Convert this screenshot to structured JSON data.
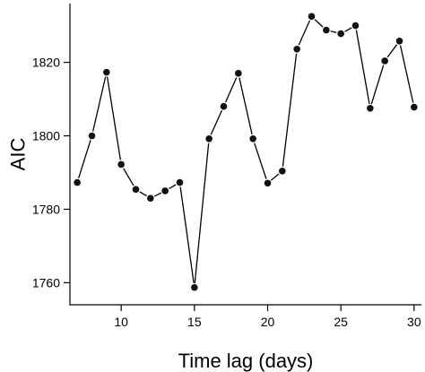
{
  "chart_data": {
    "type": "line",
    "xlabel": "Time lag (days)",
    "ylabel": "AIC",
    "xlim": [
      6.5,
      30.5
    ],
    "ylim": [
      1754,
      1836
    ],
    "xticks": [
      10,
      15,
      20,
      25,
      30
    ],
    "yticks": [
      1760,
      1780,
      1800,
      1820
    ],
    "grid": false,
    "series": [
      {
        "x": [
          7,
          8,
          9,
          10,
          11,
          12,
          13,
          14,
          15,
          16,
          17,
          18,
          19,
          20,
          21,
          22,
          23,
          24,
          25,
          26,
          27,
          28,
          29,
          30
        ],
        "values": [
          1787.3,
          1800.0,
          1817.3,
          1792.2,
          1785.4,
          1783.0,
          1785.0,
          1787.3,
          1758.7,
          1799.2,
          1808.0,
          1817.0,
          1799.2,
          1787.1,
          1790.4,
          1823.6,
          1832.5,
          1828.8,
          1827.8,
          1830.0,
          1807.5,
          1820.4,
          1825.8,
          1807.8
        ]
      }
    ]
  }
}
